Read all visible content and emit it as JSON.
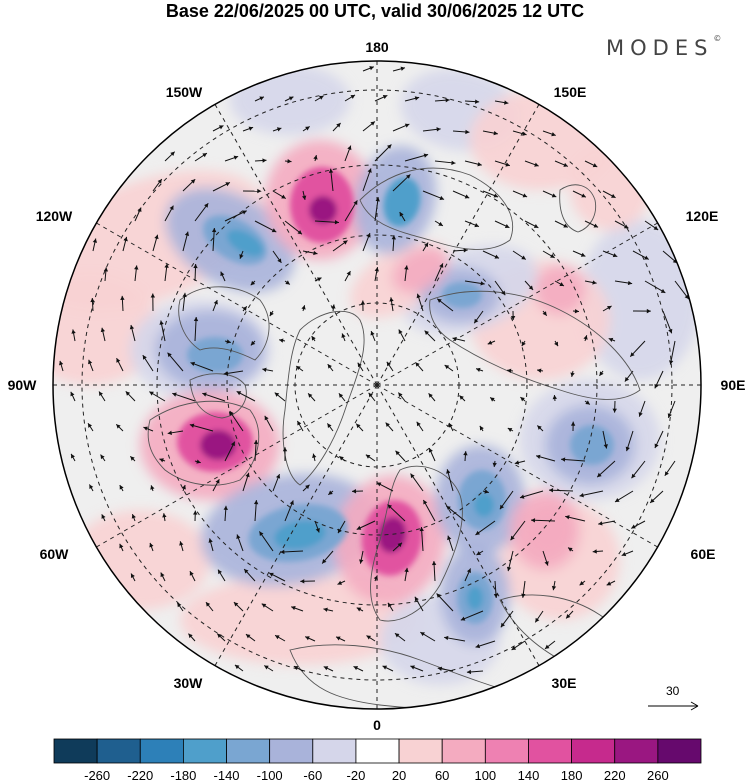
{
  "title": "Base 22/06/2025 00 UTC, valid 30/06/2025 12 UTC",
  "brand": "MODES",
  "brand_mark": "©",
  "longitude_labels": {
    "top": "180",
    "top_right": "150E",
    "right_upper": "120E",
    "right": "90E",
    "right_lower": "60E",
    "bottom_right": "30E",
    "bottom": "0",
    "bottom_left": "30W",
    "left_lower": "60W",
    "left": "90W",
    "left_upper": "120W",
    "top_left": "150W"
  },
  "vector_scale": {
    "value": "30",
    "icon": "reference-arrow-icon"
  },
  "colorbar": {
    "colors": [
      "#0f3b5a",
      "#1f5f8f",
      "#2d80b8",
      "#4f9fcb",
      "#7aa6d2",
      "#a9b3da",
      "#d5d6ea",
      "#ffffff",
      "#f8d2d3",
      "#f4abc0",
      "#ee81b2",
      "#e152a0",
      "#c62a8d",
      "#9a1781",
      "#66096d"
    ],
    "labels": [
      "-260",
      "-220",
      "-180",
      "-140",
      "-100",
      "-60",
      "-20",
      "20",
      "60",
      "100",
      "140",
      "180",
      "220",
      "260"
    ]
  },
  "anomaly_colors": {
    "strong_negative": "#4f9fcb",
    "negative": "#7aa6d2",
    "weak_negative": "#a9b3da",
    "faint_negative": "#d5d6ea",
    "faint_positive": "#f8d2d3",
    "positive": "#f4abc0",
    "strong_positive": "#e152a0",
    "extreme_positive": "#9a1781"
  }
}
